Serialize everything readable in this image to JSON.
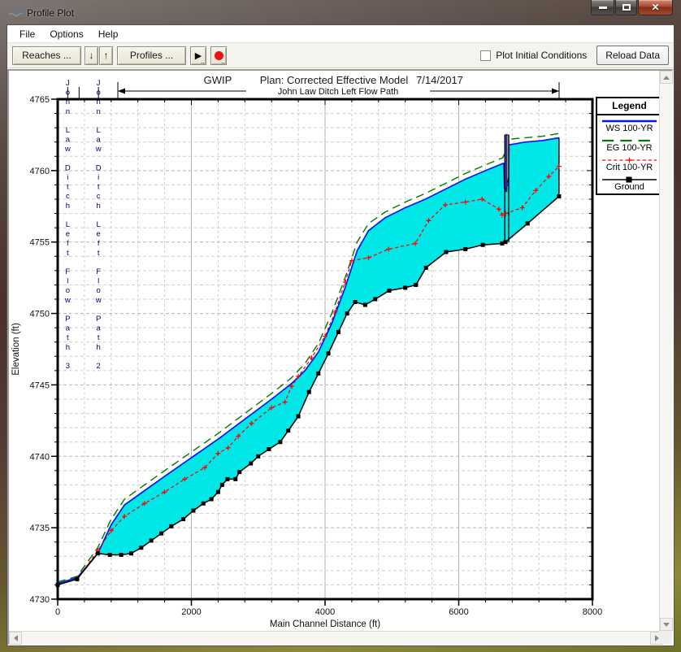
{
  "window": {
    "title": "Profile Plot",
    "close_glyph": "✕"
  },
  "menu": {
    "items": [
      "File",
      "Options",
      "Help"
    ]
  },
  "toolbar": {
    "reaches_label": "Reaches ...",
    "down_arrow": "↓",
    "up_arrow": "↑",
    "profiles_label": "Profiles ...",
    "play": "▶",
    "play_dots": "..",
    "record_dots": "..",
    "plot_initial_conditions_label": "Plot Initial Conditions",
    "checkbox_checked": false,
    "reload_data_label": "Reload Data"
  },
  "legend": {
    "title": "Legend",
    "entries": [
      {
        "label": "WS  100-YR",
        "style": "ws"
      },
      {
        "label": "EG  100-YR",
        "style": "eg"
      },
      {
        "label": "Crit  100-YR",
        "style": "crit"
      },
      {
        "label": "Ground",
        "style": "ground"
      }
    ]
  },
  "chart_data": {
    "type": "area",
    "title_left": "GWIP",
    "title_plan": "Plan: Corrected Effective Model",
    "title_date": "7/14/2017",
    "annotation": "John Law Ditch Left Flow Path",
    "xlabel": "Main Channel Distance (ft)",
    "ylabel": "Elevation (ft)",
    "xlim": [
      0,
      8000
    ],
    "ylim": [
      4730,
      4765
    ],
    "x_major_ticks": [
      0,
      2000,
      4000,
      6000,
      8000
    ],
    "x_minor_step": 400,
    "y_major_ticks": [
      4730,
      4735,
      4740,
      4745,
      4750,
      4755,
      4760,
      4765
    ],
    "y_minor_step": 1,
    "grid": true,
    "legend_position": "upper-right-outside",
    "reach_labels": [
      {
        "text": "John Law Ditch Left Flow Path 3",
        "x": 150
      },
      {
        "text": "John Law Ditch Left Flow Path 2",
        "x": 610
      }
    ],
    "station_tick_xs": [
      150,
      320,
      610
    ],
    "colors": {
      "ws": "#0018ee",
      "eg": "#007a00",
      "crit": "#ff0000",
      "ground": "#000000",
      "fill": "#00e7e7",
      "grid_minor": "#cdcdcd",
      "grid_major": "#b5b5b5",
      "reach_text": "#000080",
      "bridge_fill": "#bdbdbd"
    },
    "series": {
      "ground": [
        [
          0,
          4731.0
        ],
        [
          290,
          4731.4
        ],
        [
          600,
          4733.2
        ],
        [
          780,
          4733.1
        ],
        [
          950,
          4733.1
        ],
        [
          1100,
          4733.2
        ],
        [
          1250,
          4733.6
        ],
        [
          1400,
          4734.1
        ],
        [
          1550,
          4734.6
        ],
        [
          1700,
          4735.1
        ],
        [
          1880,
          4735.6
        ],
        [
          2030,
          4736.2
        ],
        [
          2180,
          4736.7
        ],
        [
          2300,
          4737.0
        ],
        [
          2400,
          4737.5
        ],
        [
          2460,
          4738.0
        ],
        [
          2540,
          4738.4
        ],
        [
          2660,
          4738.4
        ],
        [
          2720,
          4738.9
        ],
        [
          2890,
          4739.5
        ],
        [
          3000,
          4740.0
        ],
        [
          3160,
          4740.5
        ],
        [
          3330,
          4741.0
        ],
        [
          3450,
          4741.8
        ],
        [
          3600,
          4742.8
        ],
        [
          3760,
          4744.5
        ],
        [
          3900,
          4745.8
        ],
        [
          4050,
          4747.2
        ],
        [
          4200,
          4748.7
        ],
        [
          4330,
          4750.0
        ],
        [
          4450,
          4750.8
        ],
        [
          4600,
          4750.6
        ],
        [
          4750,
          4751.0
        ],
        [
          4960,
          4751.6
        ],
        [
          5200,
          4751.8
        ],
        [
          5360,
          4752.0
        ],
        [
          5510,
          4753.2
        ],
        [
          5810,
          4754.3
        ],
        [
          6100,
          4754.5
        ],
        [
          6360,
          4754.8
        ],
        [
          6650,
          4754.9
        ],
        [
          6700,
          4755.0
        ],
        [
          7030,
          4756.3
        ],
        [
          7500,
          4758.2
        ]
      ],
      "ws": [
        [
          0,
          4731.1
        ],
        [
          290,
          4731.5
        ],
        [
          600,
          4733.2
        ],
        [
          800,
          4735.2
        ],
        [
          1000,
          4736.6
        ],
        [
          1300,
          4737.6
        ],
        [
          1600,
          4738.6
        ],
        [
          2000,
          4739.9
        ],
        [
          2400,
          4741.2
        ],
        [
          2800,
          4742.6
        ],
        [
          3200,
          4744.0
        ],
        [
          3500,
          4745.1
        ],
        [
          3700,
          4746.0
        ],
        [
          3900,
          4747.3
        ],
        [
          4100,
          4749.3
        ],
        [
          4300,
          4751.8
        ],
        [
          4480,
          4754.4
        ],
        [
          4650,
          4755.8
        ],
        [
          4900,
          4756.7
        ],
        [
          5200,
          4757.4
        ],
        [
          5500,
          4758.0
        ],
        [
          5800,
          4758.7
        ],
        [
          6100,
          4759.4
        ],
        [
          6400,
          4760.0
        ],
        [
          6660,
          4760.5
        ],
        [
          6675,
          4760.5
        ],
        [
          6685,
          4758.8
        ],
        [
          6740,
          4759.0
        ],
        [
          6752,
          4761.8
        ],
        [
          7000,
          4762.0
        ],
        [
          7250,
          4762.1
        ],
        [
          7500,
          4762.3
        ]
      ],
      "eg": [
        [
          0,
          4731.2
        ],
        [
          290,
          4731.6
        ],
        [
          600,
          4733.6
        ],
        [
          800,
          4735.6
        ],
        [
          1000,
          4737.0
        ],
        [
          1300,
          4738.0
        ],
        [
          1600,
          4739.0
        ],
        [
          2000,
          4740.3
        ],
        [
          2400,
          4741.6
        ],
        [
          2800,
          4743.0
        ],
        [
          3200,
          4744.4
        ],
        [
          3500,
          4745.5
        ],
        [
          3700,
          4746.5
        ],
        [
          3900,
          4747.9
        ],
        [
          4100,
          4750.0
        ],
        [
          4300,
          4752.5
        ],
        [
          4480,
          4755.0
        ],
        [
          4650,
          4756.3
        ],
        [
          4900,
          4757.1
        ],
        [
          5200,
          4757.8
        ],
        [
          5500,
          4758.4
        ],
        [
          5800,
          4759.1
        ],
        [
          6100,
          4759.8
        ],
        [
          6400,
          4760.4
        ],
        [
          6660,
          4760.9
        ],
        [
          6760,
          4762.2
        ],
        [
          7000,
          4762.3
        ],
        [
          7250,
          4762.4
        ],
        [
          7500,
          4762.6
        ]
      ],
      "crit": [
        [
          0,
          4731.0
        ],
        [
          290,
          4731.4
        ],
        [
          600,
          4733.4
        ],
        [
          800,
          4734.8
        ],
        [
          1000,
          4735.8
        ],
        [
          1300,
          4736.7
        ],
        [
          1600,
          4737.5
        ],
        [
          1900,
          4738.4
        ],
        [
          2200,
          4739.2
        ],
        [
          2400,
          4740.2
        ],
        [
          2550,
          4740.6
        ],
        [
          2700,
          4741.4
        ],
        [
          2900,
          4742.3
        ],
        [
          3200,
          4743.4
        ],
        [
          3400,
          4743.8
        ],
        [
          3500,
          4744.9
        ],
        [
          3600,
          4745.6
        ],
        [
          3800,
          4746.9
        ],
        [
          4000,
          4748.4
        ],
        [
          4150,
          4750.1
        ],
        [
          4300,
          4752.2
        ],
        [
          4400,
          4753.7
        ],
        [
          4650,
          4753.9
        ],
        [
          4950,
          4754.5
        ],
        [
          5350,
          4754.9
        ],
        [
          5550,
          4756.5
        ],
        [
          5800,
          4757.6
        ],
        [
          6100,
          4757.8
        ],
        [
          6350,
          4758.0
        ],
        [
          6600,
          4757.3
        ],
        [
          6650,
          4756.9
        ],
        [
          6700,
          4757.0
        ],
        [
          6950,
          4757.4
        ],
        [
          7150,
          4758.6
        ],
        [
          7350,
          4759.6
        ],
        [
          7500,
          4760.3
        ]
      ]
    },
    "water_fill_start_x": 600,
    "right_closure_x": 7500,
    "bridge": {
      "x1": 6690,
      "x2": 6748,
      "base": 4755.0,
      "deck_low": 4758.5,
      "deck_low2": 4759.6,
      "top": 4762.5
    }
  }
}
